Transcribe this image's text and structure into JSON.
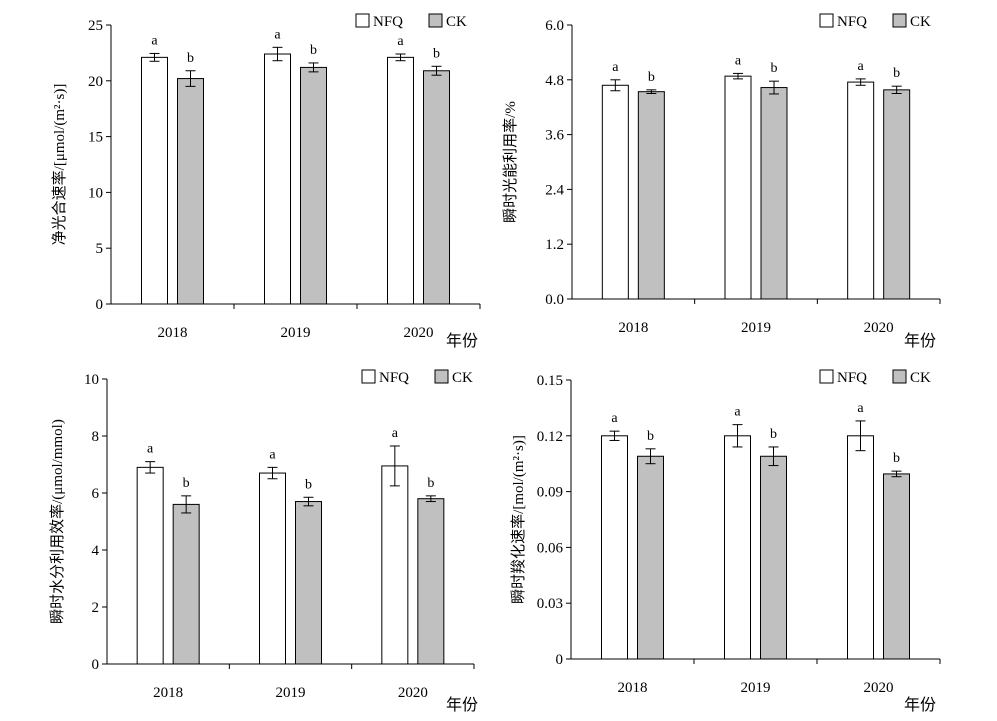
{
  "legend": {
    "nfq": "NFQ",
    "ck": "CK"
  },
  "colors": {
    "nfq": "#ffffff",
    "ck": "#c0c0c0",
    "stroke": "#000000"
  },
  "x_unit": "年份",
  "chart_data": [
    {
      "type": "bar",
      "panel": "top-left",
      "categories": [
        "2018",
        "2019",
        "2020"
      ],
      "ylabel": "净光合速率/[μmol/(m²·s)]",
      "ylim": [
        0,
        25
      ],
      "yticks": [
        0,
        5,
        10,
        15,
        20,
        25
      ],
      "ytick_labels": [
        "0",
        "5",
        "10",
        "15",
        "20",
        "25"
      ],
      "series": [
        {
          "name": "NFQ",
          "values": [
            22.1,
            22.4,
            22.1
          ],
          "errors": [
            0.35,
            0.6,
            0.3
          ],
          "sig": [
            "a",
            "a",
            "a"
          ]
        },
        {
          "name": "CK",
          "values": [
            20.2,
            21.2,
            20.9
          ],
          "errors": [
            0.7,
            0.4,
            0.4
          ],
          "sig": [
            "b",
            "b",
            "b"
          ]
        }
      ]
    },
    {
      "type": "bar",
      "panel": "top-right",
      "categories": [
        "2018",
        "2019",
        "2020"
      ],
      "ylabel": "瞬时光能利用率/%",
      "ylim": [
        0,
        6
      ],
      "yticks": [
        0,
        1.2,
        2.4,
        3.6,
        4.8,
        6.0
      ],
      "ytick_labels": [
        "0.0",
        "1.2",
        "2.4",
        "3.6",
        "4.8",
        "6.0"
      ],
      "series": [
        {
          "name": "NFQ",
          "values": [
            4.68,
            4.88,
            4.75
          ],
          "errors": [
            0.12,
            0.06,
            0.07
          ],
          "sig": [
            "a",
            "a",
            "a"
          ]
        },
        {
          "name": "CK",
          "values": [
            4.54,
            4.63,
            4.58
          ],
          "errors": [
            0.04,
            0.14,
            0.08
          ],
          "sig": [
            "b",
            "b",
            "b"
          ]
        }
      ]
    },
    {
      "type": "bar",
      "panel": "bottom-left",
      "categories": [
        "2018",
        "2019",
        "2020"
      ],
      "ylabel": "瞬时水分利用效率/(μmol/mmol)",
      "ylim": [
        0,
        10
      ],
      "yticks": [
        0,
        2,
        4,
        6,
        8,
        10
      ],
      "ytick_labels": [
        "0",
        "2",
        "4",
        "6",
        "8",
        "10"
      ],
      "series": [
        {
          "name": "NFQ",
          "values": [
            6.9,
            6.7,
            6.95
          ],
          "errors": [
            0.2,
            0.2,
            0.7
          ],
          "sig": [
            "a",
            "a",
            "a"
          ]
        },
        {
          "name": "CK",
          "values": [
            5.6,
            5.7,
            5.8
          ],
          "errors": [
            0.3,
            0.15,
            0.1
          ],
          "sig": [
            "b",
            "b",
            "b"
          ]
        }
      ]
    },
    {
      "type": "bar",
      "panel": "bottom-right",
      "categories": [
        "2018",
        "2019",
        "2020"
      ],
      "ylabel": "瞬时羧化速率/[mol/(m²·s)]",
      "ylim": [
        0,
        0.15
      ],
      "yticks": [
        0,
        0.03,
        0.06,
        0.09,
        0.12,
        0.15
      ],
      "ytick_labels": [
        "0",
        "0.03",
        "0.06",
        "0.09",
        "0.12",
        "0.15"
      ],
      "series": [
        {
          "name": "NFQ",
          "values": [
            0.12,
            0.12,
            0.12
          ],
          "errors": [
            0.0025,
            0.006,
            0.008
          ],
          "sig": [
            "a",
            "a",
            "a"
          ]
        },
        {
          "name": "CK",
          "values": [
            0.109,
            0.109,
            0.0995
          ],
          "errors": [
            0.004,
            0.005,
            0.0015
          ],
          "sig": [
            "b",
            "b",
            "b"
          ]
        }
      ]
    }
  ]
}
